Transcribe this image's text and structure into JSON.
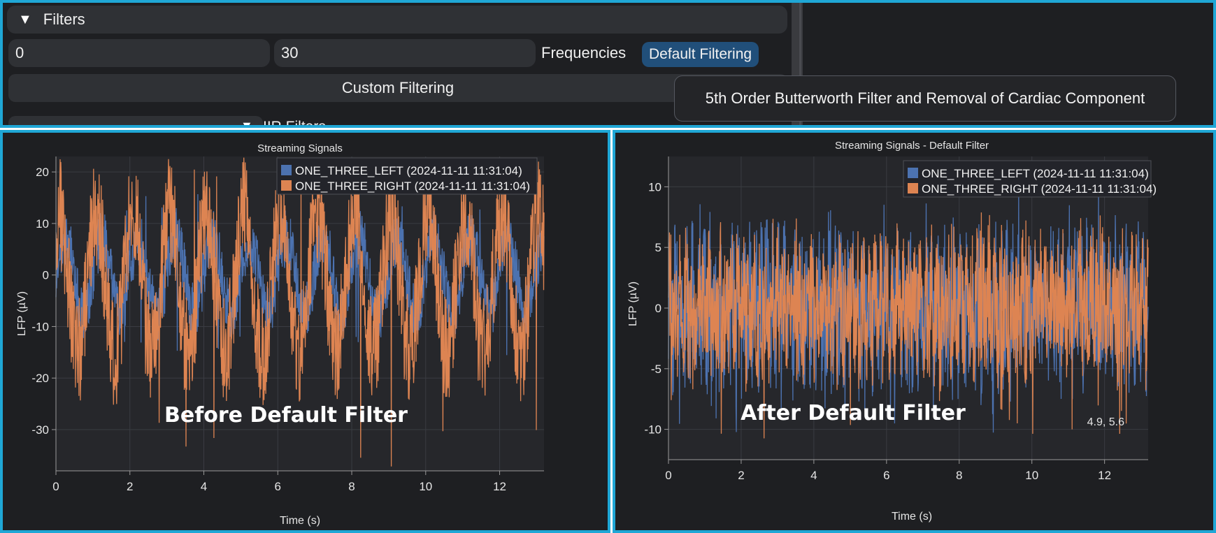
{
  "filters": {
    "title": "Filters",
    "freq_low": "0",
    "freq_high": "30",
    "frequencies_label": "Frequencies",
    "default_button": "Default Filtering",
    "custom_button": "Custom Filtering",
    "iir_label": "IIR Filters",
    "tooltip": "5th Order Butterworth Filter and Removal of Cardiac Component",
    "default_button_color": "#214f7a"
  },
  "icons": {
    "collapse": "triangle-down-icon"
  },
  "colors": {
    "series_left": "#4c72b0",
    "series_right": "#dd8452",
    "background": "#1e1f22",
    "plot_bg": "#26272b",
    "frame": "#1fa7d6"
  },
  "chart_data": [
    {
      "type": "line",
      "title": "Streaming Signals",
      "xlabel": "Time (s)",
      "ylabel": "LFP (µV)",
      "xlim": [
        0,
        13.2
      ],
      "ylim": [
        -38,
        23
      ],
      "xticks": [
        "0",
        "2",
        "4",
        "6",
        "8",
        "10",
        "12"
      ],
      "yticks": [
        "20",
        "10",
        "0",
        "-10",
        "-20",
        "-30"
      ],
      "grid": true,
      "legend_position": "top-right",
      "series": [
        {
          "name": "ONE_THREE_LEFT (2024-11-11 11:31:04)",
          "amplitude_range": [
            -16,
            16
          ]
        },
        {
          "name": "ONE_THREE_RIGHT (2024-11-11 11:31:04)",
          "amplitude_range": [
            -38,
            23
          ]
        }
      ],
      "overlay_label": "Before Default Filter"
    },
    {
      "type": "line",
      "title": "Streaming Signals - Default Filter",
      "xlabel": "Time (s)",
      "ylabel": "LFP (µV)",
      "xlim": [
        0,
        13.2
      ],
      "ylim": [
        -12.5,
        12.5
      ],
      "xticks": [
        "0",
        "2",
        "4",
        "6",
        "8",
        "10",
        "12"
      ],
      "yticks": [
        "10",
        "5",
        "0",
        "-5",
        "-10"
      ],
      "grid": true,
      "legend_position": "top-right",
      "series": [
        {
          "name": "ONE_THREE_LEFT (2024-11-11 11:31:04)",
          "amplitude_range": [
            -10.5,
            10
          ]
        },
        {
          "name": "ONE_THREE_RIGHT (2024-11-11 11:31:04)",
          "amplitude_range": [
            -11,
            8
          ]
        }
      ],
      "overlay_label": "After Default Filter",
      "cursor_readout": "4.9, 5.6"
    }
  ]
}
